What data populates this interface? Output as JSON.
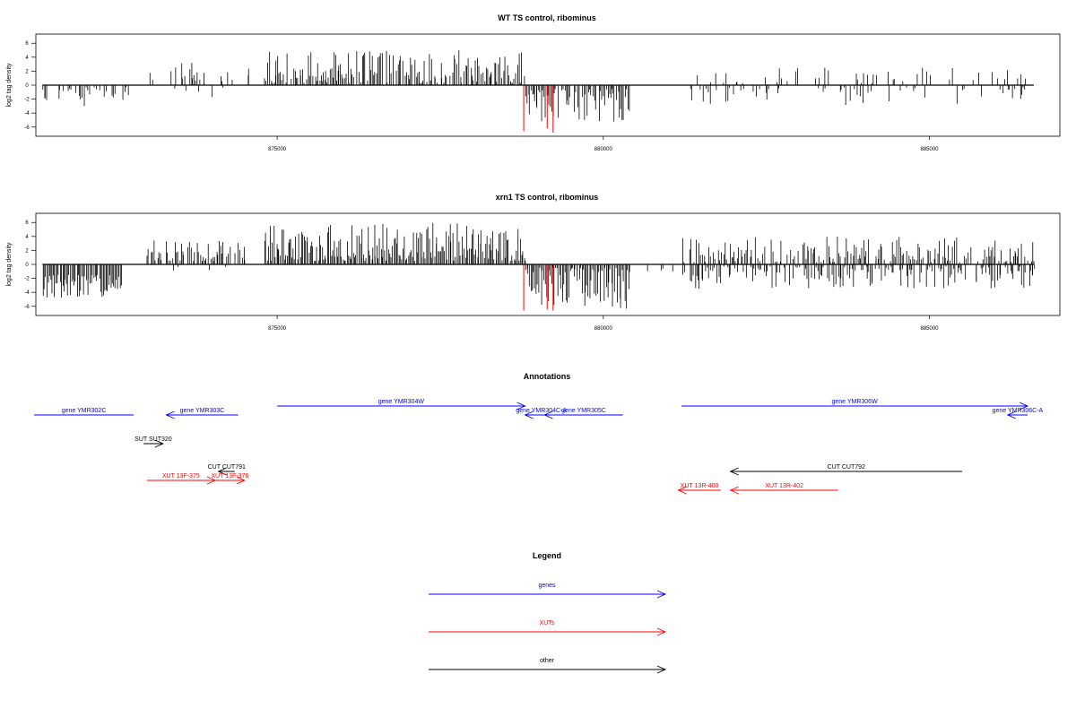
{
  "chart_data": [
    {
      "type": "bar",
      "title": "WT TS control, ribominus",
      "xlabel": "",
      "ylabel": "log2 tag density",
      "xlim": [
        871300,
        887000
      ],
      "ylim": [
        -6.8,
        6.8
      ],
      "yticks": [
        -6,
        -4,
        -2,
        0,
        2,
        4,
        6
      ],
      "xticks": [
        875000,
        880000,
        885000
      ],
      "xtick_labels": [
        "875000",
        "880000",
        "885000"
      ],
      "segments": [
        {
          "start": 871400,
          "end": 872700,
          "sign": -1,
          "density": 0.35,
          "amp": [
            0.3,
            3.0
          ]
        },
        {
          "start": 872900,
          "end": 874600,
          "sign": 1,
          "density": 0.25,
          "amp": [
            0.3,
            3.2
          ]
        },
        {
          "start": 873400,
          "end": 874300,
          "sign": -1,
          "density": 0.1,
          "amp": [
            0.3,
            2.0
          ]
        },
        {
          "start": 874800,
          "end": 878800,
          "sign": 1,
          "density": 0.8,
          "amp": [
            0.3,
            5.0
          ]
        },
        {
          "start": 878800,
          "end": 880400,
          "sign": -1,
          "density": 0.9,
          "amp": [
            0.5,
            5.5
          ]
        },
        {
          "start": 881200,
          "end": 886500,
          "sign": 1,
          "density": 0.15,
          "amp": [
            0.3,
            2.5
          ]
        },
        {
          "start": 881200,
          "end": 886500,
          "sign": -1,
          "density": 0.2,
          "amp": [
            0.3,
            3.0
          ]
        }
      ],
      "highlights": [
        {
          "x": 878780,
          "y": -6.6
        },
        {
          "x": 879140,
          "y": -6.2
        },
        {
          "x": 879230,
          "y": -6.8
        }
      ],
      "colors": {
        "bars": "#000000",
        "highlight": "#ff0000"
      }
    },
    {
      "type": "bar",
      "title": "xrn1 TS control, ribominus",
      "xlabel": "",
      "ylabel": "log2 tag density",
      "xlim": [
        871300,
        887000
      ],
      "ylim": [
        -6.8,
        6.8
      ],
      "yticks": [
        -6,
        -4,
        -2,
        0,
        2,
        4,
        6
      ],
      "xticks": [
        875000,
        880000,
        885000
      ],
      "xtick_labels": [
        "875000",
        "880000",
        "885000"
      ],
      "segments": [
        {
          "start": 871400,
          "end": 872600,
          "sign": -1,
          "density": 1.0,
          "amp": [
            1.5,
            5.0
          ]
        },
        {
          "start": 873000,
          "end": 874500,
          "sign": 1,
          "density": 0.7,
          "amp": [
            0.5,
            3.5
          ]
        },
        {
          "start": 873400,
          "end": 874400,
          "sign": -1,
          "density": 0.1,
          "amp": [
            0.3,
            2.5
          ]
        },
        {
          "start": 874800,
          "end": 878800,
          "sign": 1,
          "density": 1.0,
          "amp": [
            0.5,
            6.0
          ]
        },
        {
          "start": 878800,
          "end": 880400,
          "sign": -1,
          "density": 1.0,
          "amp": [
            0.5,
            6.5
          ]
        },
        {
          "start": 880500,
          "end": 881100,
          "sign": -1,
          "density": 0.15,
          "amp": [
            0.3,
            1.5
          ]
        },
        {
          "start": 881200,
          "end": 886600,
          "sign": 1,
          "density": 0.6,
          "amp": [
            0.3,
            4.0
          ]
        },
        {
          "start": 881200,
          "end": 886600,
          "sign": -1,
          "density": 0.6,
          "amp": [
            0.3,
            3.5
          ]
        }
      ],
      "highlights": [
        {
          "x": 878780,
          "y": -6.6
        },
        {
          "x": 879140,
          "y": -6.4
        },
        {
          "x": 879230,
          "y": -6.6
        }
      ],
      "colors": {
        "bars": "#000000",
        "highlight": "#ff0000"
      }
    }
  ],
  "annotations": {
    "title": "Annotations",
    "items": [
      {
        "label": "gene YMR302C",
        "type": "gene",
        "strand": "-",
        "start": 871100,
        "end": 872800,
        "row": 1,
        "arrow": false,
        "color": "#0000ff"
      },
      {
        "label": "gene YMR303C",
        "type": "gene",
        "strand": "-",
        "start": 873300,
        "end": 874400,
        "row": 1,
        "arrow": true,
        "color": "#0000ff"
      },
      {
        "label": "gene YMR304W",
        "type": "gene",
        "strand": "+",
        "start": 875000,
        "end": 878800,
        "row": 0,
        "arrow": true,
        "color": "#0000ff"
      },
      {
        "label": "gene YMR304C-A",
        "type": "gene",
        "strand": "-",
        "start": 878800,
        "end": 879300,
        "row": 1,
        "arrow": true,
        "color": "#0000ff"
      },
      {
        "label": "gene YMR305C",
        "type": "gene",
        "strand": "-",
        "start": 879100,
        "end": 880300,
        "row": 1,
        "arrow": true,
        "color": "#0000ff"
      },
      {
        "label": "gene YMR306W",
        "type": "gene",
        "strand": "+",
        "start": 881200,
        "end": 886600,
        "row": 0,
        "arrow": true,
        "color": "#0000ff"
      },
      {
        "label": "gene YMR306C-A",
        "type": "gene",
        "strand": "-",
        "start": 886200,
        "end": 886600,
        "row": 1,
        "arrow": true,
        "color": "#0000ff"
      },
      {
        "label": "SUT SUT320",
        "type": "other",
        "strand": "+",
        "start": 872950,
        "end": 873250,
        "row": 2,
        "arrow": true,
        "color": "#000000"
      },
      {
        "label": "CUT CUT791",
        "type": "other",
        "strand": "-",
        "start": 874100,
        "end": 874350,
        "row": 3,
        "arrow": true,
        "color": "#000000"
      },
      {
        "label": "CUT CUT792",
        "type": "other",
        "strand": "-",
        "start": 881950,
        "end": 885500,
        "row": 3,
        "arrow": true,
        "color": "#000000"
      },
      {
        "label": "XUT 13F-375",
        "type": "xut",
        "strand": "+",
        "start": 873000,
        "end": 874050,
        "row": 4,
        "arrow": true,
        "color": "#ff0000"
      },
      {
        "label": "XUT 13F-376",
        "type": "xut",
        "strand": "+",
        "start": 874050,
        "end": 874500,
        "row": 4,
        "arrow": true,
        "color": "#ff0000"
      },
      {
        "label": "XUT 13R-400",
        "type": "xut",
        "strand": "-",
        "start": 881150,
        "end": 881800,
        "row": 5,
        "arrow": true,
        "color": "#ff0000"
      },
      {
        "label": "XUT 13R-402",
        "type": "xut",
        "strand": "-",
        "start": 881950,
        "end": 883600,
        "row": 5,
        "arrow": true,
        "color": "#ff0000"
      }
    ]
  },
  "legend": {
    "title": "Legend",
    "entries": [
      {
        "label": "genes",
        "color": "#0000ff"
      },
      {
        "label": "XUTs",
        "color": "#ff0000"
      },
      {
        "label": "other",
        "color": "#000000"
      }
    ]
  }
}
